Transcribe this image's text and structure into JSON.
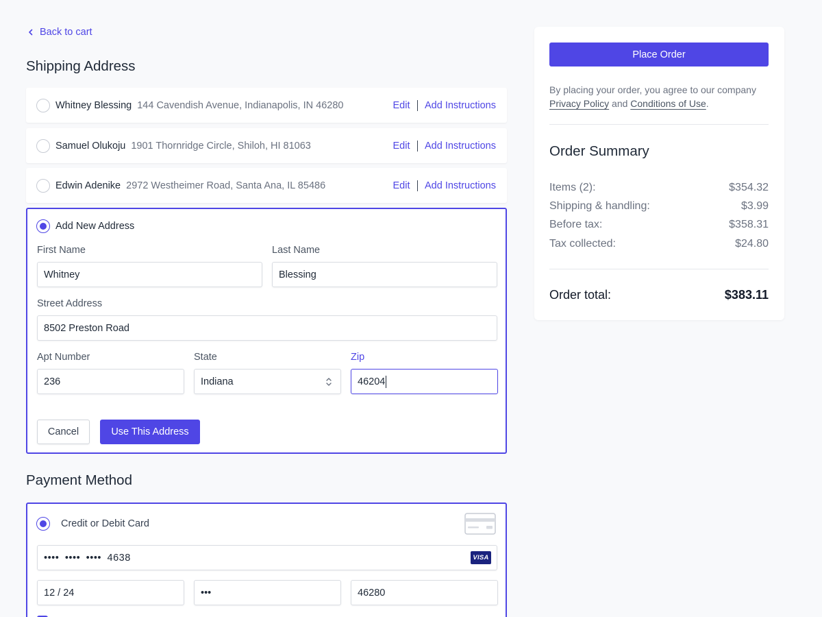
{
  "back_link": {
    "label": "Back to cart"
  },
  "shipping": {
    "title": "Shipping Address",
    "addresses": [
      {
        "name": "Whitney Blessing",
        "address": "144 Cavendish Avenue, Indianapolis, IN 46280"
      },
      {
        "name": "Samuel Olukoju",
        "address": "1901 Thornridge Circle, Shiloh, HI 81063"
      },
      {
        "name": "Edwin Adenike",
        "address": "2972 Westheimer Road, Santa Ana, IL 85486"
      }
    ],
    "edit_label": "Edit",
    "instructions_label": "Add Instructions",
    "new_address": {
      "label": "Add New Address",
      "first_name": {
        "label": "First Name",
        "value": "Whitney"
      },
      "last_name": {
        "label": "Last Name",
        "value": "Blessing"
      },
      "street": {
        "label": "Street Address",
        "value": "8502 Preston Road"
      },
      "apt": {
        "label": "Apt Number",
        "value": "236"
      },
      "state": {
        "label": "State",
        "value": "Indiana"
      },
      "zip": {
        "label": "Zip",
        "value": "46204"
      },
      "cancel_label": "Cancel",
      "use_label": "Use This Address"
    }
  },
  "payment": {
    "title": "Payment Method",
    "option_label": "Credit or Debit Card",
    "card_number": "•••• •••• •••• 4638",
    "card_brand": "VISA",
    "expiry": "12 / 24",
    "cvc": "•••",
    "zip": "46280"
  },
  "summary": {
    "place_order_label": "Place Order",
    "agree_prefix": "By placing your order, you agree to our company",
    "privacy_link": "Privacy Policy",
    "agree_and": "and",
    "conditions_link": "Conditions of Use",
    "agree_suffix": ".",
    "title": "Order Summary",
    "rows": [
      {
        "label": "Items (2):",
        "value": "$354.32"
      },
      {
        "label": "Shipping & handling:",
        "value": "$3.99"
      },
      {
        "label": "Before tax:",
        "value": "$358.31"
      },
      {
        "label": "Tax collected:",
        "value": "$24.80"
      }
    ],
    "total_label": "Order total:",
    "total_value": "$383.11"
  },
  "colors": {
    "accent": "#4f46e5",
    "background": "#f8f9fb"
  },
  "icons": {
    "back": "chevron-left-icon",
    "select": "chevron-up-down-icon",
    "card": "credit-card-icon"
  }
}
